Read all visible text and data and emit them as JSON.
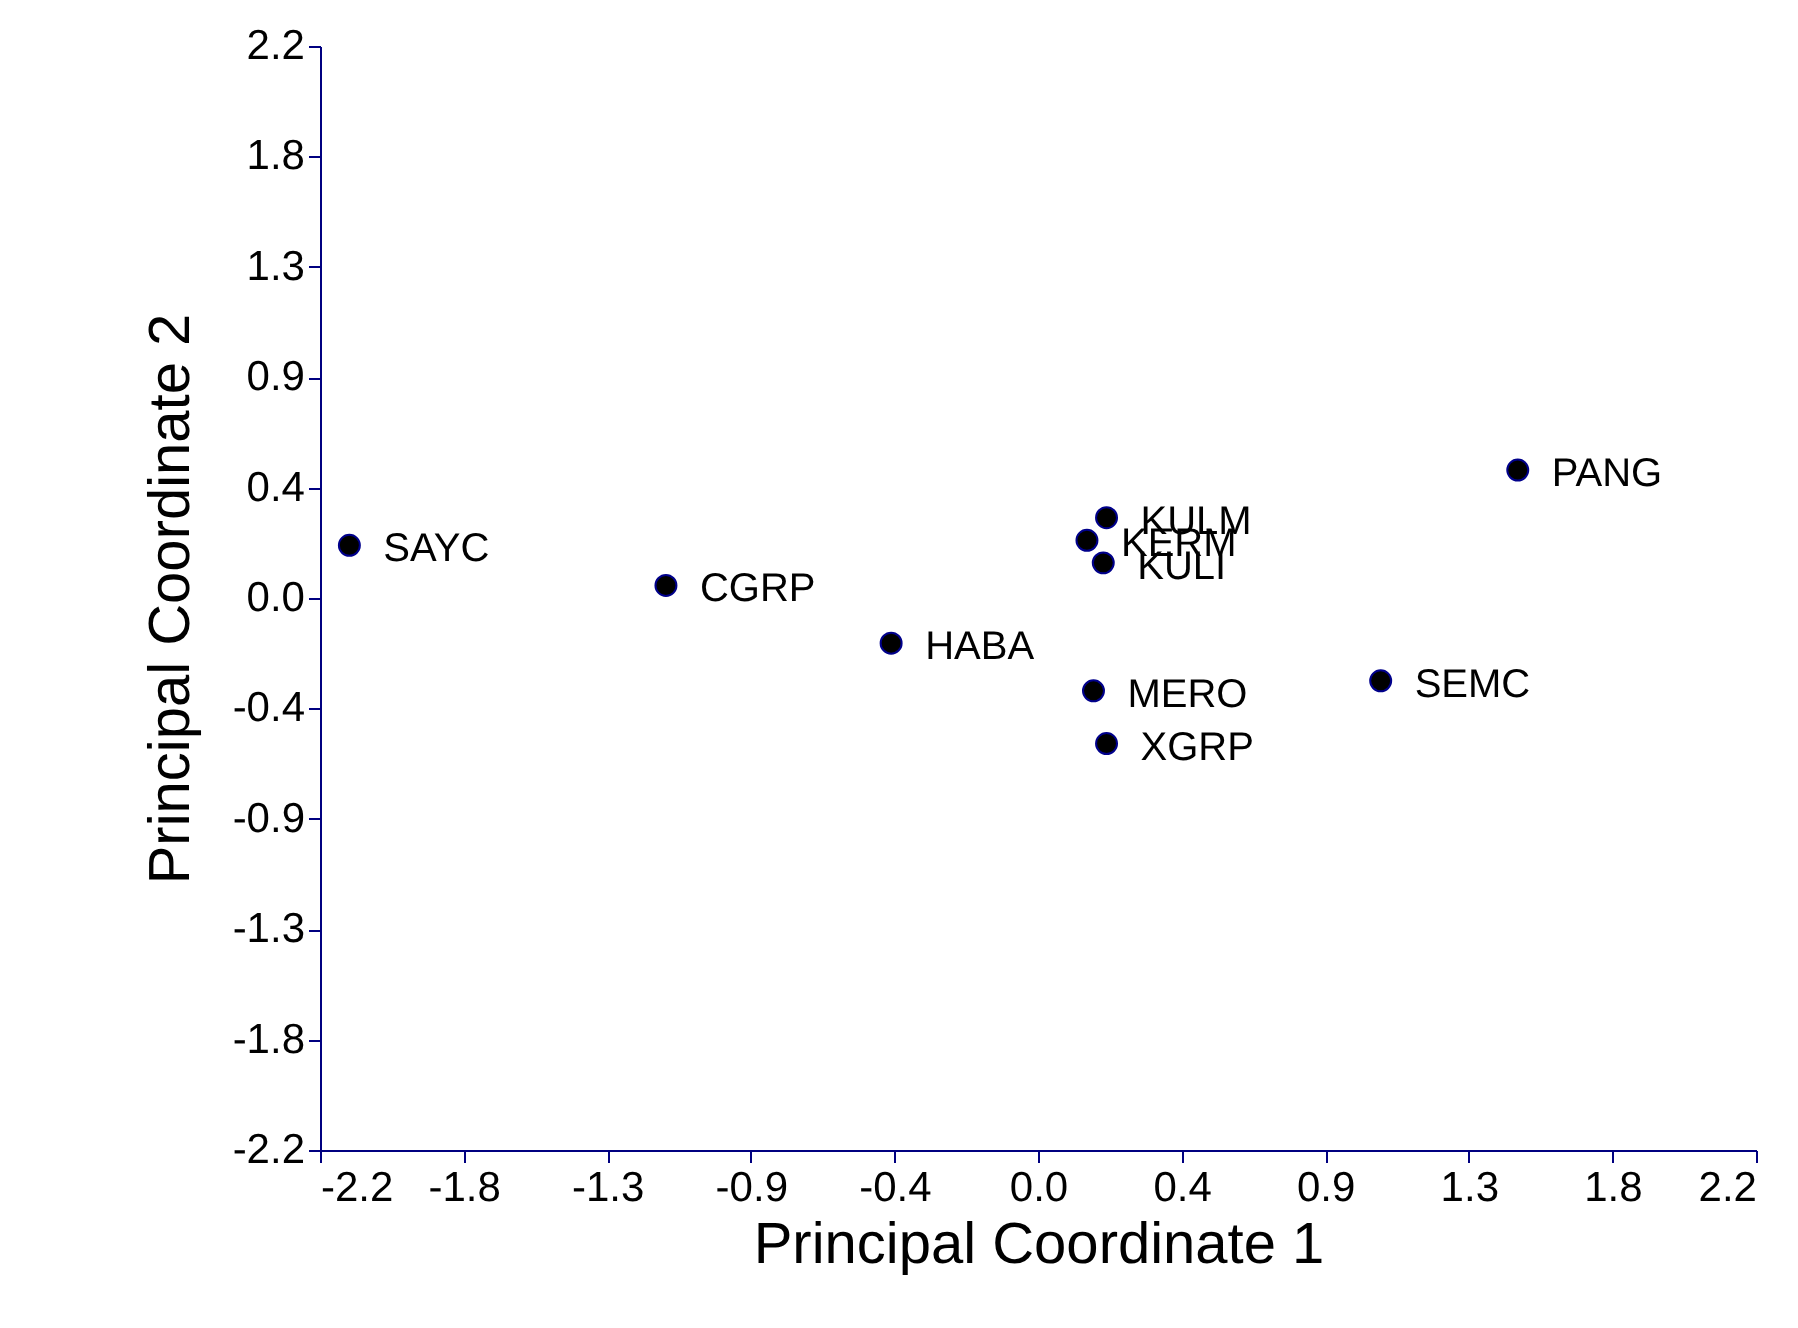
{
  "chart_data": {
    "type": "scatter",
    "xlabel": "Principal Coordinate 1",
    "ylabel": "Principal Coordinate 2",
    "xlim": [
      -2.2,
      2.2
    ],
    "ylim": [
      -2.2,
      2.2
    ],
    "xticks": [
      {
        "value": -2.2,
        "label": "-2.2"
      },
      {
        "value": -1.76,
        "label": "-1.8"
      },
      {
        "value": -1.32,
        "label": "-1.3"
      },
      {
        "value": -0.88,
        "label": "-0.9"
      },
      {
        "value": -0.44,
        "label": "-0.4"
      },
      {
        "value": 0,
        "label": "0.0"
      },
      {
        "value": 0.44,
        "label": "0.4"
      },
      {
        "value": 0.88,
        "label": "0.9"
      },
      {
        "value": 1.32,
        "label": "1.3"
      },
      {
        "value": 1.76,
        "label": "1.8"
      },
      {
        "value": 2.2,
        "label": "2.2"
      }
    ],
    "yticks": [
      {
        "value": -2.2,
        "label": "-2.2"
      },
      {
        "value": -1.76,
        "label": "-1.8"
      },
      {
        "value": -1.32,
        "label": "-1.3"
      },
      {
        "value": -0.88,
        "label": "-0.9"
      },
      {
        "value": -0.44,
        "label": "-0.4"
      },
      {
        "value": 0,
        "label": "0.0"
      },
      {
        "value": 0.44,
        "label": "0.4"
      },
      {
        "value": 0.88,
        "label": "0.9"
      },
      {
        "value": 1.32,
        "label": "1.3"
      },
      {
        "value": 1.76,
        "label": "1.8"
      },
      {
        "value": 2.2,
        "label": "2.2"
      }
    ],
    "marker": "circle",
    "legend": false,
    "series": [
      {
        "name": "SAYC",
        "color": "#000000",
        "x": [
          -2.11
        ],
        "values": [
          0.21
        ]
      },
      {
        "name": "CGRP",
        "color": "#000000",
        "x": [
          -1.14
        ],
        "values": [
          0.05
        ]
      },
      {
        "name": "HABA",
        "color": "#000000",
        "x": [
          -0.45
        ],
        "values": [
          -0.18
        ]
      },
      {
        "name": "KERM",
        "color": "#000000",
        "x": [
          0.15
        ],
        "values": [
          0.23
        ]
      },
      {
        "name": "KULM",
        "color": "#000000",
        "x": [
          0.21
        ],
        "values": [
          0.32
        ]
      },
      {
        "name": "KULI",
        "color": "#000000",
        "x": [
          0.2
        ],
        "values": [
          0.14
        ]
      },
      {
        "name": "MERO",
        "color": "#000000",
        "x": [
          0.17
        ],
        "values": [
          -0.37
        ]
      },
      {
        "name": "XGRP",
        "color": "#000000",
        "x": [
          0.21
        ],
        "values": [
          -0.58
        ]
      },
      {
        "name": "SEMC",
        "color": "#000000",
        "x": [
          1.05
        ],
        "values": [
          -0.33
        ]
      },
      {
        "name": "PANG",
        "color": "#000000",
        "x": [
          1.47
        ],
        "values": [
          0.51
        ]
      }
    ]
  }
}
